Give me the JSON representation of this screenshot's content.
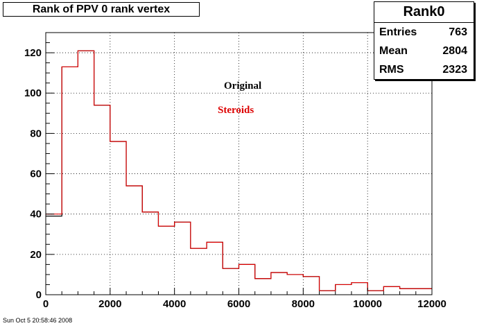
{
  "title": "Rank of PPV 0 rank vertex",
  "stats": {
    "name": "Rank0",
    "rows": [
      {
        "label": "Entries",
        "value": "763"
      },
      {
        "label": "Mean",
        "value": "2804"
      },
      {
        "label": "RMS",
        "value": "2323"
      }
    ]
  },
  "legend": {
    "original": "Original",
    "steroids": "Steroids"
  },
  "footer": "Sun Oct  5 20:58:46 2008",
  "colors": {
    "original": "#000000",
    "steroids": "#dd0000"
  },
  "chart_data": {
    "type": "bar",
    "subtype": "histogram-step",
    "title": "Rank of PPV 0 rank vertex",
    "xlim": [
      0,
      12000
    ],
    "ylim": [
      0,
      130
    ],
    "bin_width": 500,
    "x_ticks": [
      0,
      2000,
      4000,
      6000,
      8000,
      10000,
      12000
    ],
    "y_ticks": [
      0,
      20,
      40,
      60,
      80,
      100,
      120
    ],
    "grid": true,
    "series": [
      {
        "name": "Original",
        "color": "#000000",
        "values": [
          39,
          113,
          121,
          94,
          76,
          54,
          41,
          34,
          36,
          23,
          26,
          13,
          15,
          8,
          11,
          10,
          9,
          2,
          5,
          6,
          2,
          4,
          3,
          3
        ]
      },
      {
        "name": "Steroids",
        "color": "#dd0000",
        "values": [
          40,
          113,
          121,
          94,
          76,
          54,
          41,
          34,
          36,
          23,
          26,
          13,
          15,
          8,
          11,
          10,
          9,
          2,
          5,
          6,
          2,
          4,
          3,
          3
        ]
      }
    ]
  }
}
